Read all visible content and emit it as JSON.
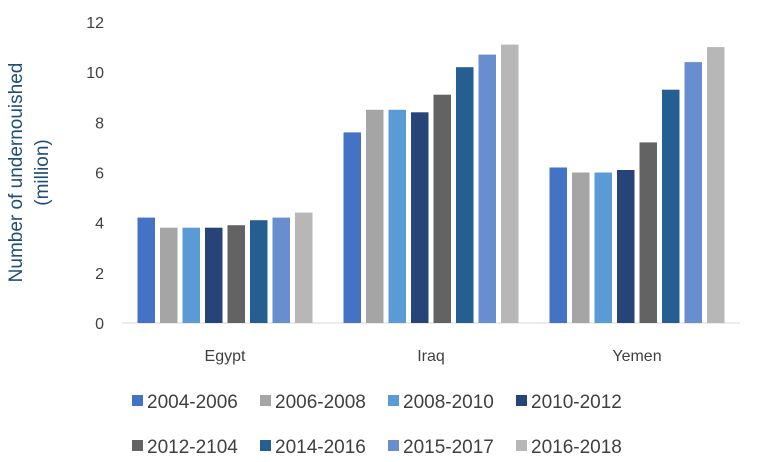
{
  "chart_data": {
    "type": "bar",
    "categories": [
      "Egypt",
      "Iraq",
      "Yemen"
    ],
    "ylabel": "Number of undernouished (million)",
    "ylabel_lines": [
      "Number of undernouished",
      "(million)"
    ],
    "ylim": [
      0,
      12
    ],
    "yticks": [
      0,
      2,
      4,
      6,
      8,
      10,
      12
    ],
    "grid": false,
    "legend": "bottom",
    "series": [
      {
        "name": "2004-2006",
        "color": "#4472C4",
        "values": [
          4.2,
          7.6,
          6.2
        ]
      },
      {
        "name": "2006-2008",
        "color": "#A5A5A5",
        "values": [
          3.8,
          8.5,
          6.0
        ]
      },
      {
        "name": "2008-2010",
        "color": "#5B9BD5",
        "values": [
          3.8,
          8.5,
          6.0
        ]
      },
      {
        "name": "2010-2012",
        "color": "#264478",
        "values": [
          3.8,
          8.4,
          6.1
        ]
      },
      {
        "name": "2012-2104",
        "color": "#636363",
        "values": [
          3.9,
          9.1,
          7.2
        ]
      },
      {
        "name": "2014-2016",
        "color": "#255E91",
        "values": [
          4.1,
          10.2,
          9.3
        ]
      },
      {
        "name": "2015-2017",
        "color": "#698ED0",
        "values": [
          4.2,
          10.7,
          10.4
        ]
      },
      {
        "name": "2016-2018",
        "color": "#B7B7B7",
        "values": [
          4.4,
          11.1,
          11.0
        ]
      }
    ]
  }
}
